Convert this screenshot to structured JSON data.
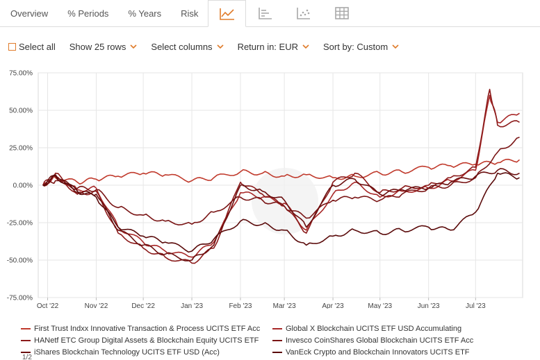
{
  "tabs": [
    {
      "label": "Overview",
      "icon": null,
      "active": false
    },
    {
      "label": "% Periods",
      "icon": null,
      "active": false
    },
    {
      "label": "% Years",
      "icon": null,
      "active": false
    },
    {
      "label": "Risk",
      "icon": null,
      "active": false
    },
    {
      "label": "",
      "icon": "line-chart-icon",
      "active": true
    },
    {
      "label": "",
      "icon": "bar-chart-icon",
      "active": false
    },
    {
      "label": "",
      "icon": "scatter-chart-icon",
      "active": false
    },
    {
      "label": "",
      "icon": "table-grid-icon",
      "active": false
    }
  ],
  "toolbar": {
    "select_all": "Select all",
    "show_rows": "Show 25 rows",
    "select_columns": "Select columns",
    "return_in": "Return in: EUR",
    "sort_by": "Sort by: Custom"
  },
  "colors": {
    "accent": "#e07b2a",
    "icon_gray": "#a8a8a8",
    "grid": "#e6e6e6"
  },
  "chart_data": {
    "type": "line",
    "title": "",
    "xlabel": "",
    "ylabel": "",
    "ylim": [
      -75,
      75
    ],
    "y_ticks": [
      75,
      50,
      25,
      0,
      -25,
      -50,
      -75
    ],
    "y_tick_labels": [
      "75.00%",
      "50.00%",
      "25.00%",
      "0.00%",
      "-25.00%",
      "-50.00%",
      "-75.00%"
    ],
    "x_tick_labels": [
      "Oct '22",
      "Nov '22",
      "Dec '22",
      "Jan '23",
      "Feb '23",
      "Mar '23",
      "Apr '23",
      "May '23",
      "Jun '23",
      "Jul '23"
    ],
    "x_tick_dates": [
      "2022-10-01",
      "2022-11-01",
      "2022-12-01",
      "2023-01-01",
      "2023-02-01",
      "2023-03-01",
      "2023-04-01",
      "2023-05-01",
      "2023-06-01",
      "2023-07-01"
    ],
    "x_range": [
      "2022-09-25",
      "2023-07-31"
    ],
    "grid": true,
    "legend_position": "bottom",
    "series": [
      {
        "name": "First Trust Indxx Innovative Transaction & Process UCITS ETF Acc",
        "color": "#c0392b",
        "x": [
          "2022-09-28",
          "2022-10-06",
          "2022-10-20",
          "2022-11-01",
          "2022-11-15",
          "2022-12-01",
          "2022-12-15",
          "2023-01-01",
          "2023-01-15",
          "2023-02-01",
          "2023-02-15",
          "2023-03-01",
          "2023-03-15",
          "2023-04-01",
          "2023-04-15",
          "2023-05-01",
          "2023-05-15",
          "2023-06-01",
          "2023-06-15",
          "2023-07-01",
          "2023-07-15",
          "2023-07-29"
        ],
        "values": [
          0,
          5,
          2,
          4,
          6,
          8,
          7,
          3,
          5,
          9,
          8,
          6,
          7,
          5,
          6,
          8,
          9,
          12,
          13,
          14,
          15,
          17
        ]
      },
      {
        "name": "Global X Blockchain UCITS ETF USD Accumulating",
        "color": "#a82828",
        "x": [
          "2022-09-28",
          "2022-10-06",
          "2022-10-20",
          "2022-11-01",
          "2022-11-15",
          "2022-12-01",
          "2022-12-15",
          "2023-01-01",
          "2023-01-15",
          "2023-02-01",
          "2023-02-15",
          "2023-03-01",
          "2023-03-15",
          "2023-04-01",
          "2023-04-15",
          "2023-05-01",
          "2023-05-15",
          "2023-06-01",
          "2023-06-15",
          "2023-07-01",
          "2023-07-10",
          "2023-07-15",
          "2023-07-29"
        ],
        "values": [
          0,
          6,
          -3,
          -2,
          -28,
          -38,
          -44,
          -48,
          -38,
          -5,
          -8,
          -12,
          -30,
          -6,
          2,
          -8,
          -4,
          -2,
          3,
          10,
          60,
          42,
          48
        ]
      },
      {
        "name": "HANetf ETC Group Digital Assets & Blockchain Equity UCITS ETF",
        "color": "#8b1a1a",
        "x": [
          "2022-09-28",
          "2022-10-06",
          "2022-10-20",
          "2022-11-01",
          "2022-11-15",
          "2022-12-01",
          "2022-12-15",
          "2023-01-01",
          "2023-01-15",
          "2023-02-01",
          "2023-02-15",
          "2023-03-01",
          "2023-03-15",
          "2023-04-01",
          "2023-04-15",
          "2023-05-01",
          "2023-05-15",
          "2023-06-01",
          "2023-06-15",
          "2023-07-01",
          "2023-07-10",
          "2023-07-15",
          "2023-07-29"
        ],
        "values": [
          0,
          8,
          -6,
          -4,
          -32,
          -42,
          -48,
          -52,
          -42,
          2,
          -6,
          -14,
          -32,
          2,
          8,
          -5,
          -2,
          0,
          5,
          12,
          64,
          40,
          42
        ]
      },
      {
        "name": "Invesco CoinShares Global Blockchain UCITS ETF Acc",
        "color": "#7a1515",
        "x": [
          "2022-09-28",
          "2022-10-06",
          "2022-10-20",
          "2022-11-01",
          "2022-11-15",
          "2022-12-01",
          "2022-12-15",
          "2023-01-01",
          "2023-01-15",
          "2023-02-01",
          "2023-02-15",
          "2023-03-01",
          "2023-03-15",
          "2023-04-01",
          "2023-04-15",
          "2023-05-01",
          "2023-05-15",
          "2023-06-01",
          "2023-06-15",
          "2023-07-01",
          "2023-07-15",
          "2023-07-29"
        ],
        "values": [
          0,
          3,
          -2,
          -3,
          -15,
          -20,
          -24,
          -26,
          -18,
          -8,
          -10,
          -14,
          -22,
          -10,
          -8,
          -10,
          -6,
          -2,
          0,
          5,
          22,
          32
        ]
      },
      {
        "name": "iShares Blockchain Technology UCITS ETF USD (Acc)",
        "color": "#6b0f0f",
        "x": [
          "2022-09-28",
          "2022-10-06",
          "2022-10-20",
          "2022-11-01",
          "2022-11-15",
          "2022-12-01",
          "2022-12-15",
          "2023-01-01",
          "2023-01-15",
          "2023-02-01",
          "2023-02-15",
          "2023-03-01",
          "2023-03-15",
          "2023-04-01",
          "2023-04-15",
          "2023-05-01",
          "2023-05-15",
          "2023-06-01",
          "2023-06-15",
          "2023-07-01",
          "2023-07-15",
          "2023-07-29"
        ],
        "values": [
          0,
          7,
          -5,
          -6,
          -30,
          -40,
          -46,
          -50,
          -40,
          0,
          -4,
          -10,
          -28,
          0,
          4,
          -6,
          -3,
          -2,
          2,
          6,
          10,
          8
        ]
      },
      {
        "name": "VanEck Crypto and Blockchain Innovators UCITS ETF",
        "color": "#5a0a0a",
        "x": [
          "2022-09-28",
          "2022-10-06",
          "2022-10-20",
          "2022-11-01",
          "2022-11-15",
          "2022-12-01",
          "2022-12-15",
          "2023-01-01",
          "2023-01-15",
          "2023-02-01",
          "2023-02-15",
          "2023-03-01",
          "2023-03-15",
          "2023-04-01",
          "2023-04-15",
          "2023-05-01",
          "2023-05-15",
          "2023-06-01",
          "2023-06-15",
          "2023-07-01",
          "2023-07-15",
          "2023-07-29"
        ],
        "values": [
          0,
          6,
          -4,
          -8,
          -28,
          -34,
          -38,
          -44,
          -36,
          -24,
          -26,
          -30,
          -40,
          -34,
          -30,
          -32,
          -30,
          -28,
          -30,
          -18,
          8,
          5
        ]
      }
    ]
  },
  "pager": "1/2"
}
